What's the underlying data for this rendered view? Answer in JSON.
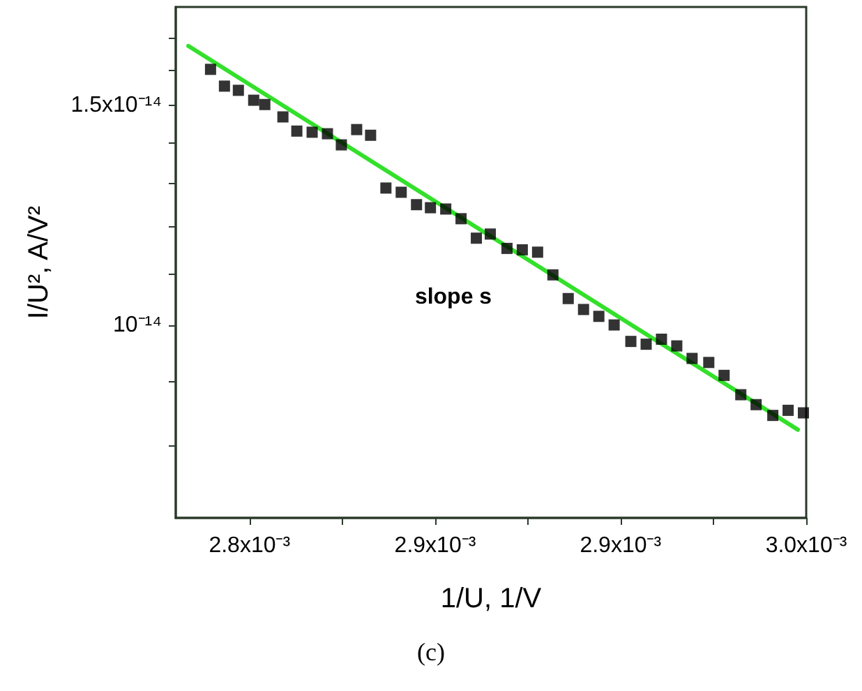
{
  "chart_data": {
    "type": "scatter",
    "xlabel": "1/U, 1/V",
    "ylabel": "I/U², A/V²",
    "log": "y",
    "grid": false,
    "marker": "square",
    "xlim": [
      0.0027735,
      0.003
    ],
    "ylim": [
      7e-15,
      1.8e-14
    ],
    "xticks": [
      {
        "value": 0.0028,
        "label": "2.8x10⁻³"
      },
      {
        "value": 0.0028333,
        "label": null
      },
      {
        "value": 0.0028667,
        "label": "2.9x10⁻³"
      },
      {
        "value": 0.0029,
        "label": null
      },
      {
        "value": 0.0029333,
        "label": "2.9x10⁻³"
      },
      {
        "value": 0.0029667,
        "label": null
      },
      {
        "value": 0.003,
        "label": "3.0x10⁻³"
      }
    ],
    "yticks": [
      {
        "value": 8e-15,
        "label": null
      },
      {
        "value": 9e-15,
        "label": null
      },
      {
        "value": 1e-14,
        "label": "10⁻¹⁴"
      },
      {
        "value": 1.1e-14,
        "label": null
      },
      {
        "value": 1.2e-14,
        "label": null
      },
      {
        "value": 1.3e-14,
        "label": null
      },
      {
        "value": 1.4e-14,
        "label": null
      },
      {
        "value": 1.5e-14,
        "label": "1.5x10⁻¹⁴"
      },
      {
        "value": 1.6e-14,
        "label": null
      },
      {
        "value": 1.7e-14,
        "label": null
      }
    ],
    "series": [
      {
        "color": "#000000",
        "x": [
          0.002786,
          0.002791,
          0.002796,
          0.0028015,
          0.0028055,
          0.002812,
          0.002817,
          0.0028225,
          0.002828,
          0.002833,
          0.0028385,
          0.0028435,
          0.002849,
          0.0028545,
          0.00286,
          0.002865,
          0.0028705,
          0.002876,
          0.0028815,
          0.0028865,
          0.0028925,
          0.002898,
          0.0029035,
          0.002909,
          0.0029145,
          0.00292,
          0.0029255,
          0.002931,
          0.002937,
          0.0029425,
          0.002948,
          0.0029535,
          0.002959,
          0.002965,
          0.0029705,
          0.0029765,
          0.002982,
          0.002988,
          0.0029935,
          0.002999
        ],
        "values": [
          1.604e-14,
          1.555e-14,
          1.543e-14,
          1.515e-14,
          1.503e-14,
          1.469e-14,
          1.431e-14,
          1.428e-14,
          1.424e-14,
          1.395e-14,
          1.435e-14,
          1.42e-14,
          1.288e-14,
          1.278e-14,
          1.249e-14,
          1.242e-14,
          1.239e-14,
          1.217e-14,
          1.174e-14,
          1.183e-14,
          1.152e-14,
          1.149e-14,
          1.144e-14,
          1.097e-14,
          1.05e-14,
          1.029e-14,
          1.016e-14,
          1e-14,
          9.7e-15,
          9.65e-15,
          9.74e-15,
          9.62e-15,
          9.4e-15,
          9.33e-15,
          9.11e-15,
          8.79e-15,
          8.63e-15,
          8.46e-15,
          8.54e-15,
          8.5e-15
        ]
      },
      {
        "type": "line",
        "color": "#33e02a",
        "marker": "none",
        "line_style": "solid",
        "x": [
          0.002778,
          0.002997
        ],
        "values": [
          1.675e-14,
          8.24e-15
        ]
      }
    ],
    "annotations": [
      "slope s",
      "(c)"
    ]
  }
}
